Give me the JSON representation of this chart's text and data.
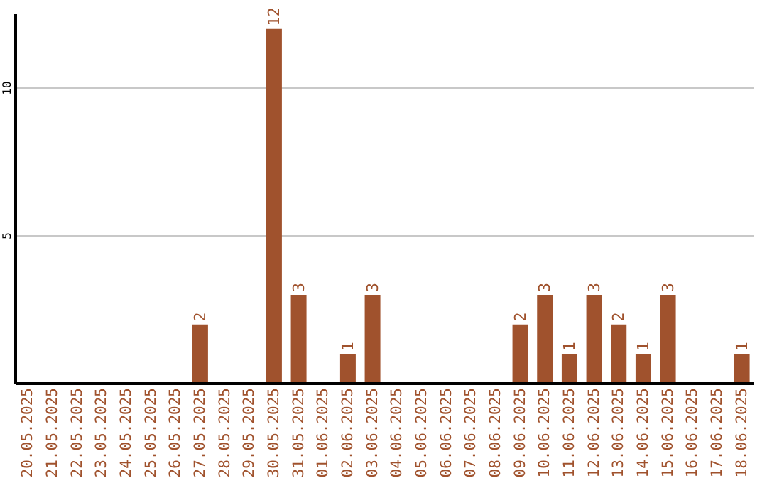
{
  "chart_data": {
    "type": "bar",
    "categories": [
      "20.05.2025",
      "21.05.2025",
      "22.05.2025",
      "23.05.2025",
      "24.05.2025",
      "25.05.2025",
      "26.05.2025",
      "27.05.2025",
      "28.05.2025",
      "29.05.2025",
      "30.05.2025",
      "31.05.2025",
      "01.06.2025",
      "02.06.2025",
      "03.06.2025",
      "04.06.2025",
      "05.06.2025",
      "06.06.2025",
      "07.06.2025",
      "08.06.2025",
      "09.06.2025",
      "10.06.2025",
      "11.06.2025",
      "12.06.2025",
      "13.06.2025",
      "14.06.2025",
      "15.06.2025",
      "16.06.2025",
      "17.06.2025",
      "18.06.2025"
    ],
    "values": [
      0,
      0,
      0,
      0,
      0,
      0,
      0,
      2,
      0,
      0,
      12,
      3,
      0,
      1,
      3,
      0,
      0,
      0,
      0,
      0,
      2,
      3,
      1,
      3,
      2,
      1,
      3,
      0,
      0,
      1
    ],
    "value_labels": [
      null,
      null,
      null,
      null,
      null,
      null,
      null,
      "2",
      null,
      null,
      "12",
      "3",
      null,
      "1",
      "3",
      null,
      null,
      null,
      null,
      null,
      "2",
      "3",
      "1",
      "3",
      "2",
      "1",
      "3",
      null,
      null,
      "1"
    ],
    "color": "#a0522d",
    "ylim": [
      0,
      12.5
    ],
    "yticks": [
      5,
      10
    ],
    "grid": "y"
  }
}
